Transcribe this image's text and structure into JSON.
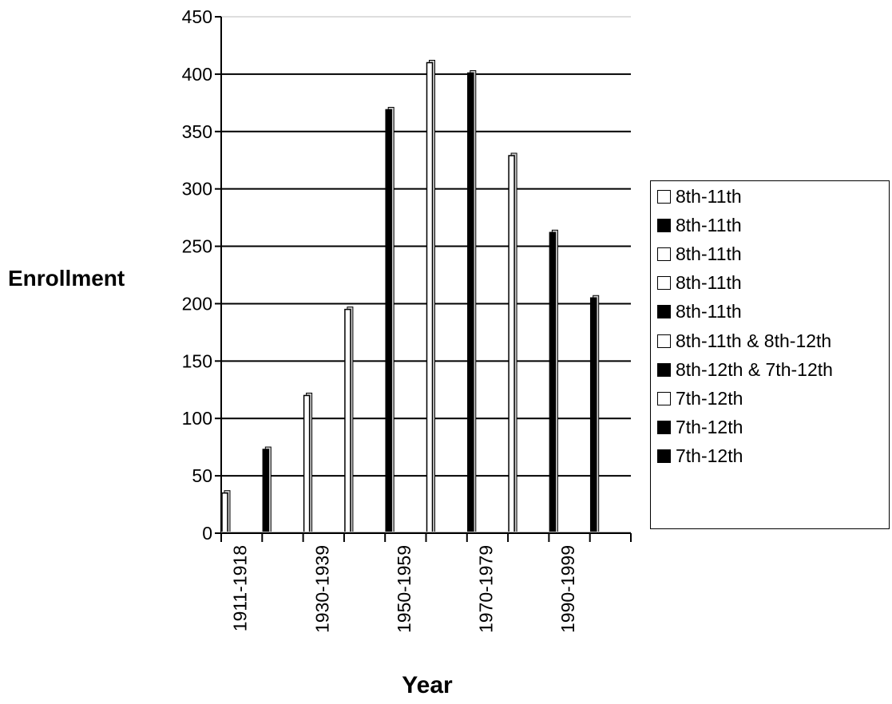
{
  "chart_data": {
    "type": "bar",
    "xlabel": "Year",
    "ylabel": "Enrollment",
    "ylim": [
      0,
      450
    ],
    "yticks": [
      0,
      50,
      100,
      150,
      200,
      250,
      300,
      350,
      400,
      450
    ],
    "grid": true,
    "legend_position": "right",
    "x_tick_labels": [
      "1911-1918",
      "1930-1939",
      "1950-1959",
      "1970-1979",
      "1990-1999"
    ],
    "bars": [
      {
        "legend": "8th-11th",
        "value": 35,
        "fill": "white"
      },
      {
        "legend": "8th-11th",
        "value": 73,
        "fill": "black"
      },
      {
        "legend": "8th-11th",
        "value": 120,
        "fill": "white"
      },
      {
        "legend": "8th-11th",
        "value": 195,
        "fill": "white"
      },
      {
        "legend": "8th-11th",
        "value": 369,
        "fill": "black"
      },
      {
        "legend": "8th-11th & 8th-12th",
        "value": 410,
        "fill": "white"
      },
      {
        "legend": "8th-12th & 7th-12th",
        "value": 401,
        "fill": "black"
      },
      {
        "legend": "7th-12th",
        "value": 329,
        "fill": "white"
      },
      {
        "legend": "7th-12th",
        "value": 262,
        "fill": "black"
      },
      {
        "legend": "7th-12th",
        "value": 205,
        "fill": "black"
      }
    ],
    "colors": {
      "white": "#ffffff",
      "black": "#000000",
      "axis": "#000000",
      "grid": "#000000"
    }
  }
}
